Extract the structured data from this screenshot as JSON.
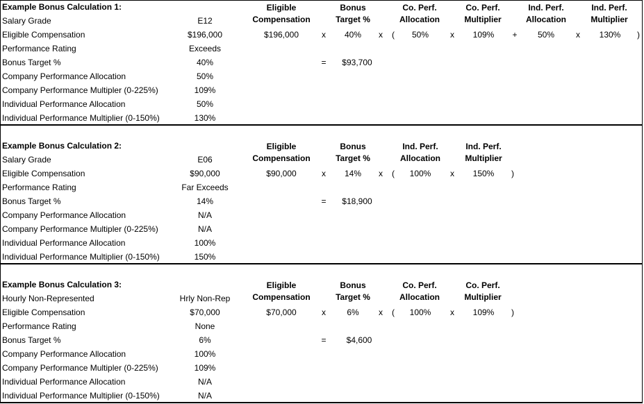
{
  "sections": [
    {
      "title": "Example Bonus Calculation 1:",
      "rows": [
        {
          "label": "Salary Grade",
          "value": "E12"
        },
        {
          "label": "Eligible Compensation",
          "value": "$196,000"
        },
        {
          "label": "Performance Rating",
          "value": "Exceeds"
        },
        {
          "label": "Bonus Target %",
          "value": "40%"
        },
        {
          "label": "Company Performance Allocation",
          "value": "50%"
        },
        {
          "label": "Company Performance Multipler (0-225%)",
          "value": "109%"
        },
        {
          "label": "Individual Performance Allocation",
          "value": "50%"
        },
        {
          "label": "Individual Performance Multiplier (0-150%)",
          "value": "130%"
        }
      ],
      "headers": [
        {
          "l1": "Eligible",
          "l2": "Compensation"
        },
        {
          "l1": "Bonus",
          "l2": "Target %"
        },
        {
          "l1": "Co. Perf.",
          "l2": "Allocation"
        },
        {
          "l1": "Co. Perf.",
          "l2": "Multiplier"
        },
        {
          "l1": "Ind. Perf.",
          "l2": "Allocation"
        },
        {
          "l1": "Ind. Perf.",
          "l2": "Multiplier"
        }
      ],
      "formula": {
        "comp": "$196,000",
        "op1": "x",
        "target": "40%",
        "op2": "x",
        "paren_open": "(",
        "a1": "50%",
        "op3": "x",
        "m1": "109%",
        "op4": "+",
        "a2": "50%",
        "op5": "x",
        "m2": "130%",
        "paren_close": ")"
      },
      "result": {
        "eq": "=",
        "amount": "$93,700"
      }
    },
    {
      "title": "Example Bonus Calculation 2:",
      "rows": [
        {
          "label": "Salary Grade",
          "value": "E06"
        },
        {
          "label": "Eligible Compensation",
          "value": "$90,000"
        },
        {
          "label": "Performance Rating",
          "value": "Far Exceeds"
        },
        {
          "label": "Bonus Target %",
          "value": "14%"
        },
        {
          "label": "Company Performance Allocation",
          "value": "N/A"
        },
        {
          "label": "Company Performance Multipler (0-225%)",
          "value": "N/A"
        },
        {
          "label": "Individual Performance Allocation",
          "value": "100%"
        },
        {
          "label": "Individual Performance Multiplier (0-150%)",
          "value": "150%"
        }
      ],
      "headers": [
        {
          "l1": "Eligible",
          "l2": "Compensation"
        },
        {
          "l1": "Bonus",
          "l2": "Target %"
        },
        {
          "l1": "Ind. Perf.",
          "l2": "Allocation"
        },
        {
          "l1": "Ind. Perf.",
          "l2": "Multiplier"
        }
      ],
      "formula": {
        "comp": "$90,000",
        "op1": "x",
        "target": "14%",
        "op2": "x",
        "paren_open": "(",
        "a1": "100%",
        "op3": "x",
        "m1": "150%",
        "paren_close": ")"
      },
      "result": {
        "eq": "=",
        "amount": "$18,900"
      }
    },
    {
      "title": "Example Bonus Calculation 3:",
      "rows": [
        {
          "label": "Hourly Non-Represented",
          "value": "Hrly Non-Rep"
        },
        {
          "label": "Eligible Compensation",
          "value": "$70,000"
        },
        {
          "label": "Performance Rating",
          "value": "None"
        },
        {
          "label": "Bonus Target %",
          "value": "6%"
        },
        {
          "label": "Company Performance Allocation",
          "value": "100%"
        },
        {
          "label": "Company Performance Multipler (0-225%)",
          "value": "109%"
        },
        {
          "label": "Individual Performance Allocation",
          "value": "N/A"
        },
        {
          "label": "Individual Performance Multiplier (0-150%)",
          "value": "N/A"
        }
      ],
      "headers": [
        {
          "l1": "Eligible",
          "l2": "Compensation"
        },
        {
          "l1": "Bonus",
          "l2": "Target %"
        },
        {
          "l1": "Co. Perf.",
          "l2": "Allocation"
        },
        {
          "l1": "Co. Perf.",
          "l2": "Multiplier"
        }
      ],
      "formula": {
        "comp": "$70,000",
        "op1": "x",
        "target": "6%",
        "op2": "x",
        "paren_open": "(",
        "a1": "100%",
        "op3": "x",
        "m1": "109%",
        "paren_close": ")"
      },
      "result": {
        "eq": "=",
        "amount": "$4,600"
      }
    }
  ]
}
